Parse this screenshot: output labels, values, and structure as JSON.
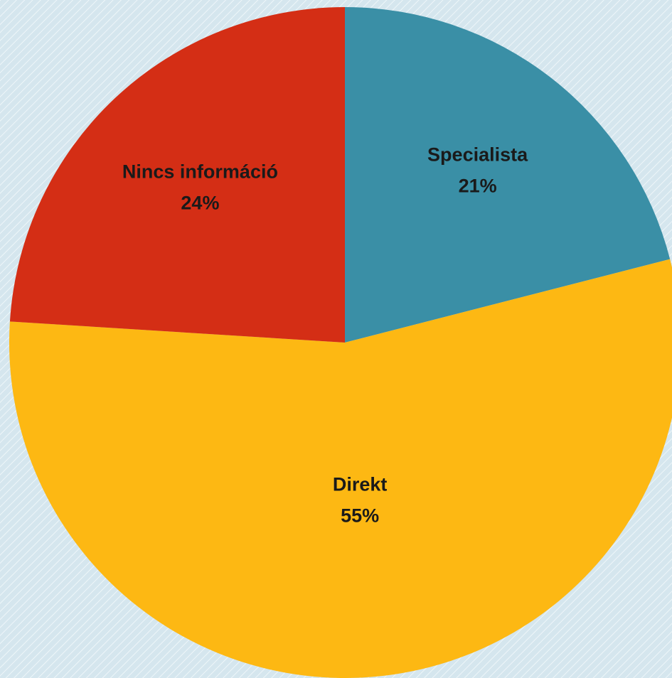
{
  "chart_data": {
    "type": "pie",
    "categories": [
      "Specialista",
      "Direkt",
      "Nincs információ"
    ],
    "values": [
      21,
      55,
      24
    ],
    "value_labels": [
      "21%",
      "55%",
      "24%"
    ],
    "colors": [
      "#3a8fa6",
      "#fdb813",
      "#d42e15"
    ]
  }
}
